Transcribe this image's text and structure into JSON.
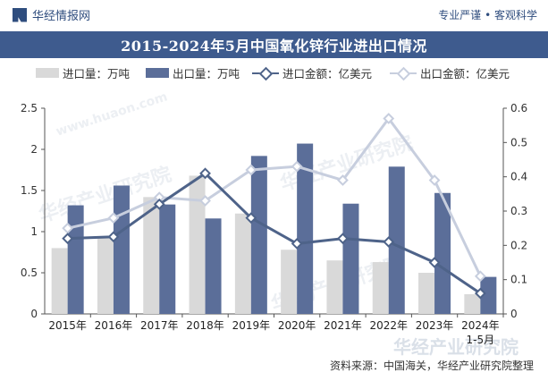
{
  "header": {
    "brand": "华经情报网",
    "slogan": "专业严谨 • 客观科学"
  },
  "footer": {
    "source": "资料来源：中国海关，华经产业研究院整理",
    "watermark": "华经产业研究院",
    "watermark_url": "www.huaon.com"
  },
  "colors": {
    "import_qty": "#d9d9d9",
    "export_qty": "#5b6e99",
    "import_amt": "#4e6389",
    "export_amt": "#c7cede",
    "title_bg": "#3e5b8e"
  },
  "chart_data": {
    "type": "bar",
    "title": "2015-2024年5月中国氧化锌行业进出口情况",
    "categories": [
      "2015年",
      "2016年",
      "2017年",
      "2018年",
      "2019年",
      "2020年",
      "2021年",
      "2022年",
      "2023年",
      "2024年\n1-5月"
    ],
    "series": [
      {
        "name": "进口量：万吨",
        "type": "bar",
        "axis": "left",
        "values": [
          0.8,
          0.92,
          1.42,
          1.68,
          1.22,
          0.78,
          0.65,
          0.63,
          0.5,
          0.24
        ]
      },
      {
        "name": "出口量：万吨",
        "type": "bar",
        "axis": "left",
        "values": [
          1.32,
          1.56,
          1.33,
          1.16,
          1.92,
          2.07,
          1.34,
          1.79,
          1.47,
          0.45
        ]
      },
      {
        "name": "进口金额：亿美元",
        "type": "line",
        "axis": "right",
        "values": [
          0.22,
          0.225,
          0.32,
          0.41,
          0.28,
          0.205,
          0.22,
          0.21,
          0.15,
          0.06
        ]
      },
      {
        "name": "出口金额：亿美元",
        "type": "line",
        "axis": "right",
        "values": [
          0.25,
          0.28,
          0.34,
          0.33,
          0.42,
          0.43,
          0.39,
          0.57,
          0.39,
          0.11
        ]
      }
    ],
    "ylim_left": [
      0,
      2.5
    ],
    "yticks_left": [
      "0",
      "0.5",
      "1",
      "1.5",
      "2",
      "2.5"
    ],
    "ylim_right": [
      0,
      0.6
    ],
    "yticks_right": [
      "0",
      "0.1",
      "0.2",
      "0.3",
      "0.4",
      "0.5",
      "0.6"
    ],
    "grid": false,
    "legend": "top"
  }
}
